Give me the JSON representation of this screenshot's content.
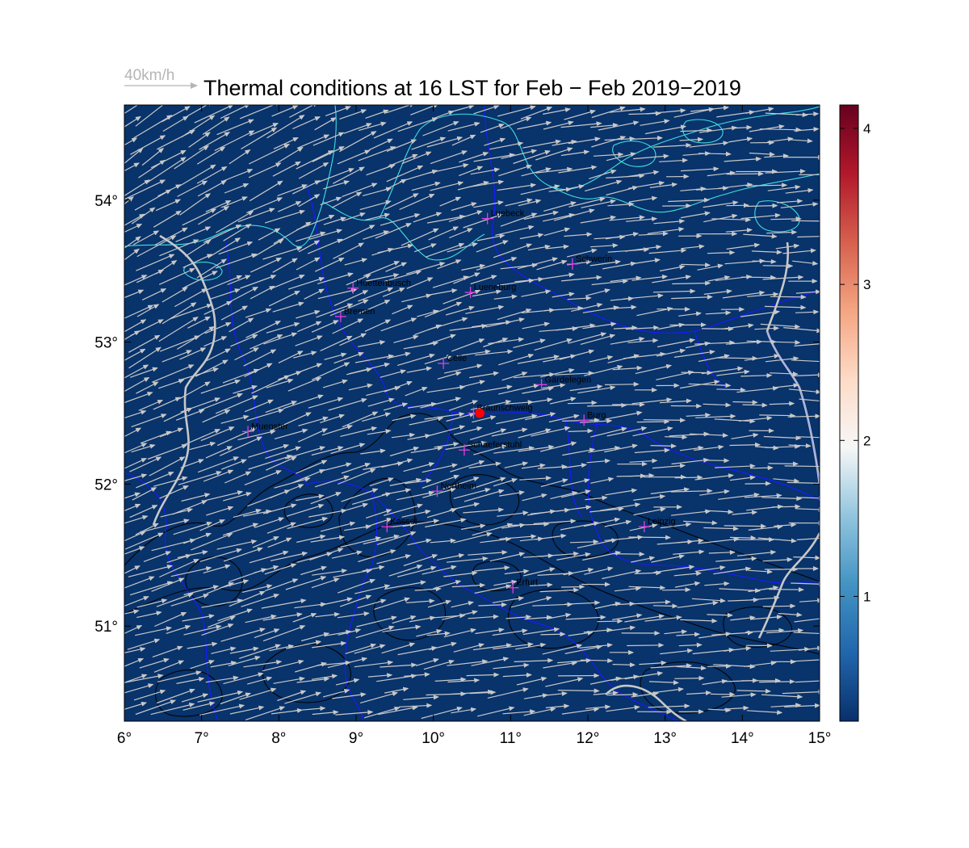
{
  "title": "Thermal conditions at 16 LST for Feb − Feb  2019−2019",
  "reference_vector": {
    "label": "40km/h",
    "speed_kmh": 40
  },
  "x_axis": {
    "ticks": [
      {
        "value": 6,
        "label": "6°"
      },
      {
        "value": 7,
        "label": "7°"
      },
      {
        "value": 8,
        "label": "8°"
      },
      {
        "value": 9,
        "label": "9°"
      },
      {
        "value": 10,
        "label": "10°"
      },
      {
        "value": 11,
        "label": "11°"
      },
      {
        "value": 12,
        "label": "12°"
      },
      {
        "value": 13,
        "label": "13°"
      },
      {
        "value": 14,
        "label": "14°"
      },
      {
        "value": 15,
        "label": "15°"
      }
    ],
    "range": [
      6,
      15
    ]
  },
  "y_axis": {
    "ticks": [
      {
        "value": 51,
        "label": "51°"
      },
      {
        "value": 52,
        "label": "52°"
      },
      {
        "value": 53,
        "label": "53°"
      },
      {
        "value": 54,
        "label": "54°"
      }
    ],
    "range": [
      50.33,
      54.67
    ]
  },
  "colorbar": {
    "ticks": [
      {
        "value": 1,
        "label": "1"
      },
      {
        "value": 2,
        "label": "2"
      },
      {
        "value": 3,
        "label": "3"
      },
      {
        "value": 4,
        "label": "4"
      }
    ],
    "range": [
      0.2,
      4.15
    ],
    "field_value": 0.2,
    "colors": [
      "#08306b",
      "#2166ac",
      "#4393c3",
      "#92c5de",
      "#f7f7f7",
      "#fddbc7",
      "#f4a582",
      "#d6604d",
      "#b2182b",
      "#67001f"
    ]
  },
  "colors": {
    "field": "#08336b",
    "coastline": "#40e0e0",
    "borders": "#1a1aff",
    "rivers": "#c8c8c8",
    "contours": "#000000",
    "wind_arrows": "#c8c8c8",
    "city_marker": "#e040e0",
    "site_marker": "#ff0000"
  },
  "cities": [
    {
      "name": "Luebeck",
      "lon": 10.7,
      "lat": 53.87
    },
    {
      "name": "Schwerin",
      "lon": 11.8,
      "lat": 53.55
    },
    {
      "name": "Huettenbusch",
      "lon": 8.96,
      "lat": 53.38
    },
    {
      "name": "Lueneburg",
      "lon": 10.48,
      "lat": 53.35
    },
    {
      "name": "Bremen",
      "lon": 8.8,
      "lat": 53.18
    },
    {
      "name": "Celle",
      "lon": 10.13,
      "lat": 52.85
    },
    {
      "name": "Gardelegen",
      "lon": 11.4,
      "lat": 52.7
    },
    {
      "name": "Braunschweig",
      "lon": 10.52,
      "lat": 52.5
    },
    {
      "name": "Burg",
      "lon": 11.95,
      "lat": 52.45
    },
    {
      "name": "Muenster",
      "lon": 7.6,
      "lat": 52.37
    },
    {
      "name": "Schaeferstuhl",
      "lon": 10.4,
      "lat": 52.24
    },
    {
      "name": "Northeim",
      "lon": 10.05,
      "lat": 51.95
    },
    {
      "name": "Kassel",
      "lon": 9.4,
      "lat": 51.7
    },
    {
      "name": "Leipzig",
      "lon": 12.73,
      "lat": 51.7
    },
    {
      "name": "Erfurt",
      "lon": 11.03,
      "lat": 51.27
    }
  ],
  "site": {
    "name": "Braunschweig",
    "lon": 10.6,
    "lat": 52.5
  },
  "wind": {
    "mean_direction_deg_from": 255,
    "mean_speed_kmh": 40
  }
}
